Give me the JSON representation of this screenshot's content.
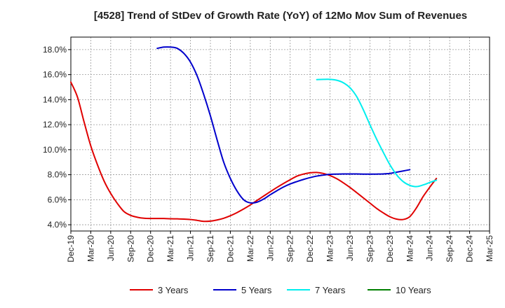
{
  "chart_data": {
    "type": "line",
    "title": "[4528]  Trend of StDev of Growth Rate (YoY) of 12Mo Mov Sum of Revenues",
    "xlabel": "",
    "ylabel": "",
    "x_ticks": [
      "Dec-19",
      "Mar-20",
      "Jun-20",
      "Sep-20",
      "Dec-20",
      "Mar-21",
      "Jun-21",
      "Sep-21",
      "Dec-21",
      "Mar-22",
      "Jun-22",
      "Sep-22",
      "Dec-22",
      "Mar-23",
      "Jun-23",
      "Sep-23",
      "Dec-23",
      "Mar-24",
      "Jun-24",
      "Sep-24",
      "Dec-24",
      "Mar-25"
    ],
    "y_ticks": [
      "4.0%",
      "6.0%",
      "8.0%",
      "10.0%",
      "12.0%",
      "14.0%",
      "16.0%",
      "18.0%"
    ],
    "ylim": [
      3.5,
      19.0
    ],
    "grid": true,
    "legend_position": "bottom",
    "series": [
      {
        "name": "3 Years",
        "color": "#e00000",
        "start_index": 0,
        "values": [
          15.4,
          14.2,
          12.2,
          10.3,
          8.8,
          7.5,
          6.5,
          5.7,
          5.05,
          4.75,
          4.6,
          4.52,
          4.5,
          4.5,
          4.5,
          4.48,
          4.47,
          4.45,
          4.42,
          4.35,
          4.27,
          4.29,
          4.38,
          4.52,
          4.72,
          4.97,
          5.26,
          5.58,
          5.94,
          6.29,
          6.64,
          6.98,
          7.3,
          7.6,
          7.88,
          8.05,
          8.15,
          8.18,
          8.1,
          7.93,
          7.68,
          7.35,
          6.98,
          6.57,
          6.15,
          5.73,
          5.31,
          4.95,
          4.64,
          4.45,
          4.42,
          4.65,
          5.35,
          6.25,
          7.0,
          7.7
        ]
      },
      {
        "name": "5 Years",
        "color": "#0000cc",
        "start_index": 13,
        "values": [
          18.1,
          18.2,
          18.2,
          18.1,
          17.7,
          17.0,
          15.9,
          14.4,
          12.7,
          10.8,
          9.0,
          7.7,
          6.7,
          6.0,
          5.75,
          5.8,
          6.05,
          6.4,
          6.72,
          7.02,
          7.26,
          7.45,
          7.62,
          7.77,
          7.89,
          7.97,
          8.03,
          8.05,
          8.06,
          8.06,
          8.06,
          8.05,
          8.05,
          8.05,
          8.06,
          8.1,
          8.2,
          8.3,
          8.4
        ]
      },
      {
        "name": "7 Years",
        "color": "#00eeee",
        "start_index": 37,
        "values": [
          15.6,
          15.62,
          15.62,
          15.55,
          15.35,
          14.95,
          14.25,
          13.2,
          12.0,
          10.85,
          9.8,
          8.8,
          8.0,
          7.45,
          7.15,
          7.05,
          7.18,
          7.38,
          7.56
        ]
      },
      {
        "name": "10 Years",
        "color": "#008000",
        "start_index": 0,
        "values": []
      }
    ]
  }
}
